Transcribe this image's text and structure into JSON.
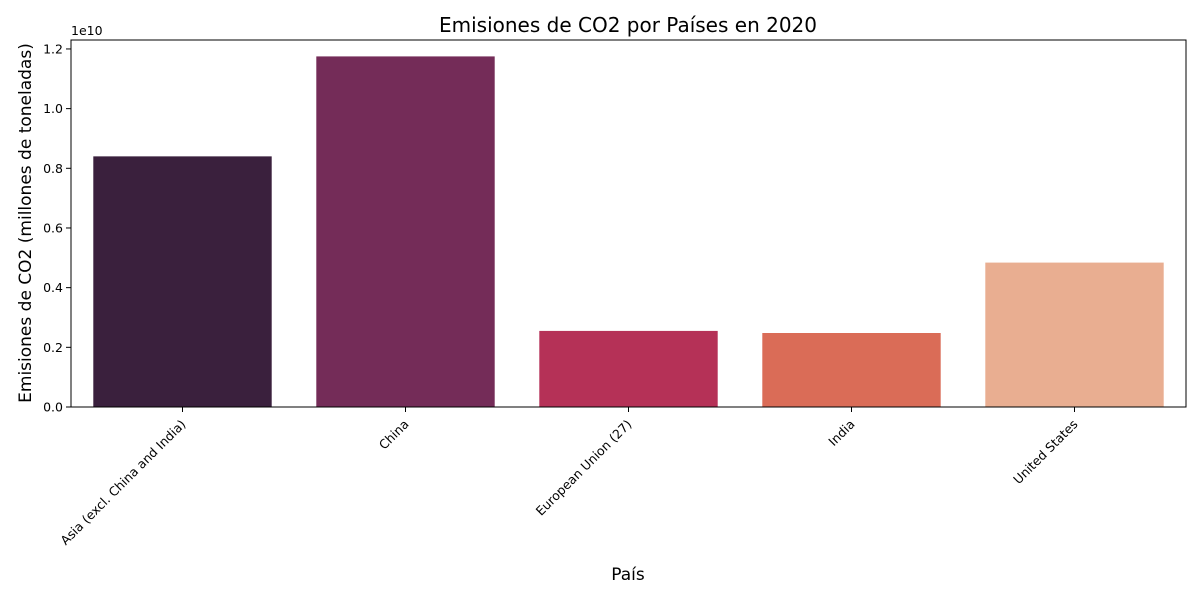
{
  "chart_data": {
    "type": "bar",
    "title": "Emisiones de CO2 por Países en 2020",
    "xlabel": "País",
    "ylabel": "Emisiones de CO2 (millones de toneladas)",
    "y_offset_label": "1e10",
    "y_scale": 10000000000,
    "ylim": [
      0,
      12300000000
    ],
    "y_ticks": [
      0,
      2000000000,
      4000000000,
      6000000000,
      8000000000,
      10000000000,
      12000000000
    ],
    "y_tick_labels": [
      "0.0",
      "0.2",
      "0.4",
      "0.6",
      "0.8",
      "1.0",
      "1.2"
    ],
    "categories": [
      "Asia (excl. China and India)",
      "China",
      "European Union (27)",
      "India",
      "United States"
    ],
    "values": [
      8400000000,
      11750000000,
      2550000000,
      2480000000,
      4840000000
    ],
    "colors": [
      "#3a203d",
      "#742c58",
      "#b53157",
      "#da6c57",
      "#e9ae91"
    ],
    "grid": false,
    "legend": "none"
  }
}
